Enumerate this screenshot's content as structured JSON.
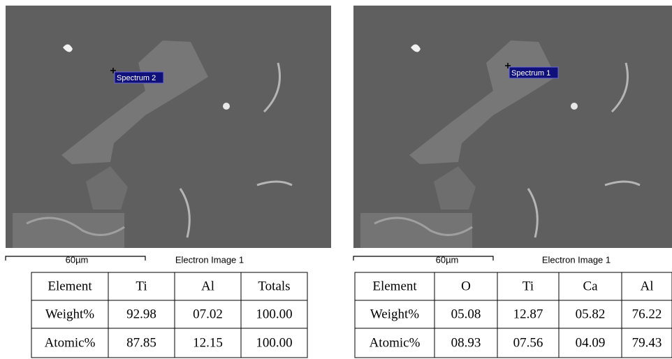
{
  "panels": [
    {
      "marker": "Spectrum 2",
      "scale": "60µm",
      "image_title": "Electron Image 1",
      "table": {
        "rows": [
          [
            "Element",
            "Ti",
            "Al",
            "Totals"
          ],
          [
            "Weight%",
            "92.98",
            "07.02",
            "100.00"
          ],
          [
            "Atomic%",
            "87.85",
            "12.15",
            "100.00"
          ]
        ]
      }
    },
    {
      "marker": "Spectrum 1",
      "scale": "60µm",
      "image_title": "Electron Image 1",
      "table": {
        "rows": [
          [
            "Element",
            "O",
            "Ti",
            "Ca",
            "Al"
          ],
          [
            "Weight%",
            "05.08",
            "12.87",
            "05.82",
            "76.22"
          ],
          [
            "Atomic%",
            "08.93",
            "07.56",
            "04.09",
            "79.43"
          ]
        ]
      }
    }
  ]
}
